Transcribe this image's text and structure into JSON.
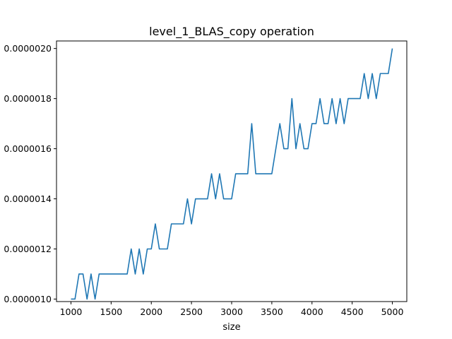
{
  "chart_data": {
    "type": "line",
    "title": "level_1_BLAS_copy operation",
    "xlabel": "size",
    "ylabel": "",
    "xlim": [
      820,
      5180
    ],
    "ylim": [
      9.9e-07,
      2.03e-06
    ],
    "grid": false,
    "xticks": [
      1000,
      1500,
      2000,
      2500,
      3000,
      3500,
      4000,
      4500,
      5000
    ],
    "xtick_labels": [
      "1000",
      "1500",
      "2000",
      "2500",
      "3000",
      "3500",
      "4000",
      "4500",
      "5000"
    ],
    "yticks": [
      1e-06,
      1.2e-06,
      1.4e-06,
      1.6e-06,
      1.8e-06,
      2e-06
    ],
    "ytick_labels": [
      "0.0000010",
      "0.0000012",
      "0.0000014",
      "0.0000016",
      "0.0000018",
      "0.0000020"
    ],
    "series": [
      {
        "color": "#1f77b4",
        "x": [
          1000,
          1050,
          1100,
          1150,
          1200,
          1250,
          1300,
          1350,
          1400,
          1450,
          1500,
          1550,
          1600,
          1650,
          1700,
          1750,
          1800,
          1850,
          1900,
          1950,
          2000,
          2050,
          2100,
          2150,
          2200,
          2250,
          2300,
          2350,
          2400,
          2450,
          2500,
          2550,
          2600,
          2650,
          2700,
          2750,
          2800,
          2850,
          2900,
          2950,
          3000,
          3050,
          3100,
          3150,
          3200,
          3250,
          3300,
          3350,
          3400,
          3450,
          3500,
          3550,
          3600,
          3650,
          3700,
          3750,
          3800,
          3850,
          3900,
          3950,
          4000,
          4050,
          4100,
          4150,
          4200,
          4250,
          4300,
          4350,
          4400,
          4450,
          4500,
          4550,
          4600,
          4650,
          4700,
          4750,
          4800,
          4850,
          4900,
          4950,
          5000
        ],
        "y": [
          1e-06,
          1e-06,
          1.1e-06,
          1.1e-06,
          1e-06,
          1.1e-06,
          1e-06,
          1.1e-06,
          1.1e-06,
          1.1e-06,
          1.1e-06,
          1.1e-06,
          1.1e-06,
          1.1e-06,
          1.1e-06,
          1.2e-06,
          1.1e-06,
          1.2e-06,
          1.1e-06,
          1.2e-06,
          1.2e-06,
          1.3e-06,
          1.2e-06,
          1.2e-06,
          1.2e-06,
          1.3e-06,
          1.3e-06,
          1.3e-06,
          1.3e-06,
          1.4e-06,
          1.3e-06,
          1.4e-06,
          1.4e-06,
          1.4e-06,
          1.4e-06,
          1.5e-06,
          1.4e-06,
          1.5e-06,
          1.4e-06,
          1.4e-06,
          1.4e-06,
          1.5e-06,
          1.5e-06,
          1.5e-06,
          1.5e-06,
          1.7e-06,
          1.5e-06,
          1.5e-06,
          1.5e-06,
          1.5e-06,
          1.5e-06,
          1.6e-06,
          1.7e-06,
          1.6e-06,
          1.6e-06,
          1.8e-06,
          1.6e-06,
          1.7e-06,
          1.6e-06,
          1.6e-06,
          1.7e-06,
          1.7e-06,
          1.8e-06,
          1.7e-06,
          1.7e-06,
          1.8e-06,
          1.7e-06,
          1.8e-06,
          1.7e-06,
          1.8e-06,
          1.8e-06,
          1.8e-06,
          1.8e-06,
          1.9e-06,
          1.8e-06,
          1.9e-06,
          1.8e-06,
          1.9e-06,
          1.9e-06,
          1.9e-06,
          2e-06
        ]
      }
    ]
  }
}
